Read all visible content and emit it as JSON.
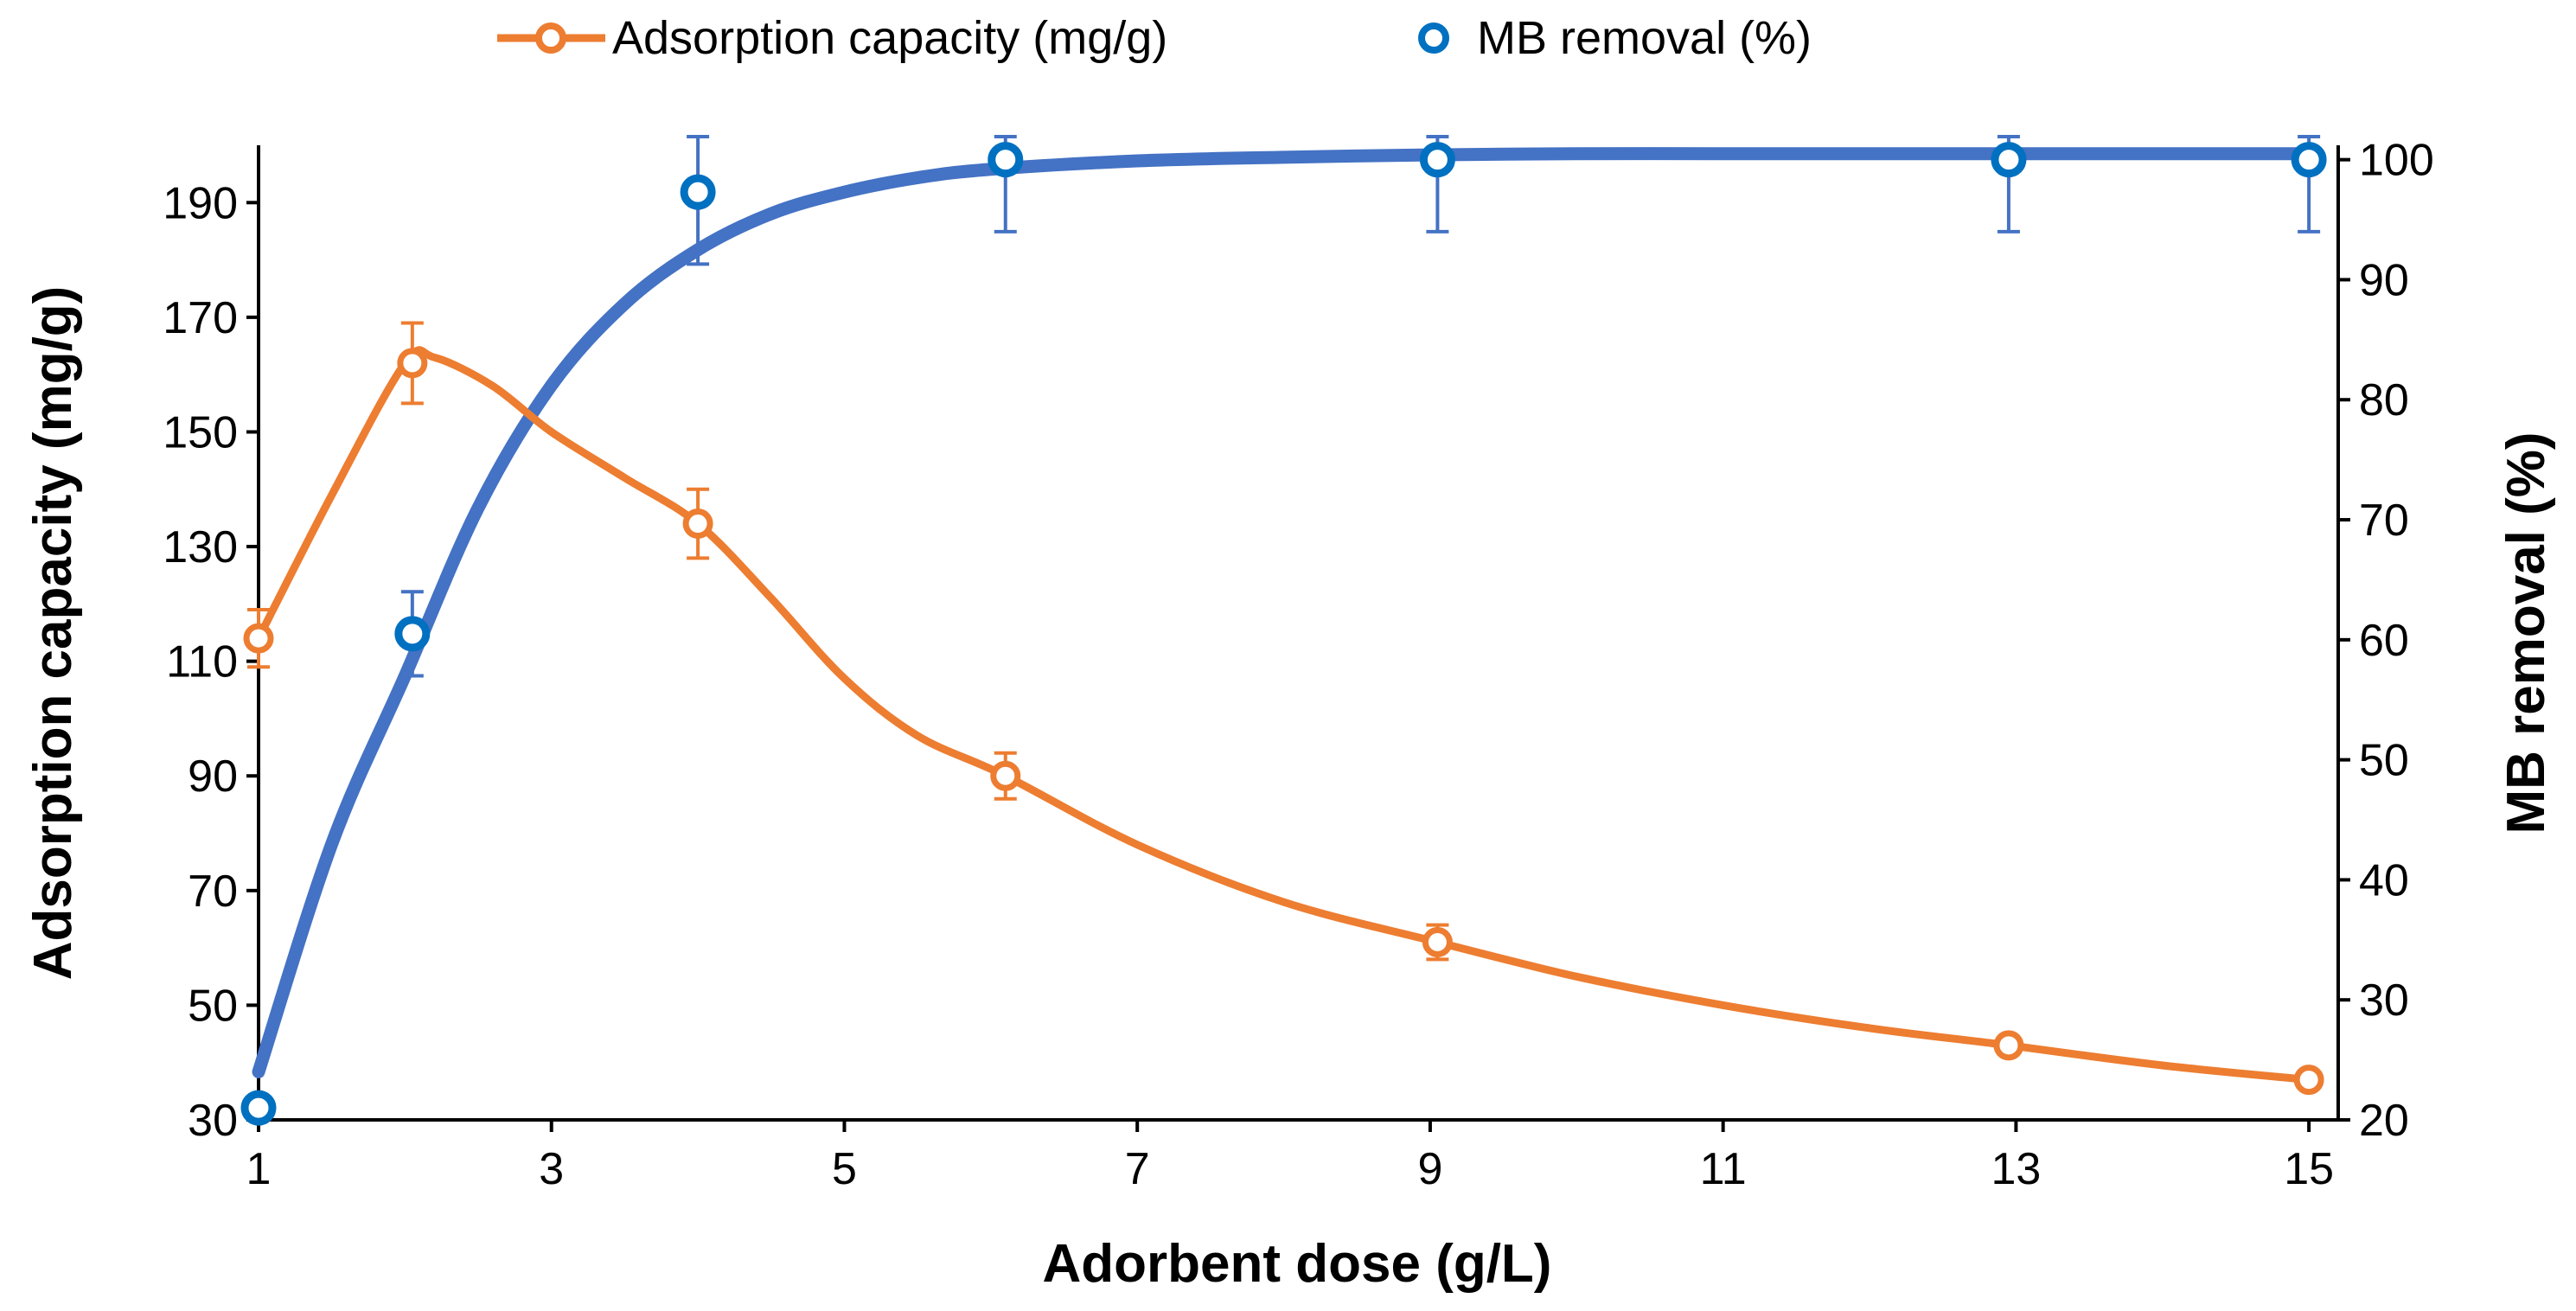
{
  "chart_data": {
    "type": "scatter",
    "xlabel": "Adorbent dose (g/L)",
    "ylabel_left": "Adsorption capacity (mg/g)",
    "ylabel_right": "MB removal (%)",
    "xlim": [
      1,
      15.2
    ],
    "ylim_left": [
      30,
      200
    ],
    "ylim_right": [
      20,
      101.2
    ],
    "xticks": [
      1,
      3,
      5,
      7,
      9,
      11,
      13,
      15
    ],
    "yticks_left": [
      30,
      50,
      70,
      90,
      110,
      130,
      150,
      170,
      190
    ],
    "yticks_right": [
      20,
      30,
      40,
      50,
      60,
      70,
      80,
      90,
      100
    ],
    "grid": false,
    "legend_position": "top-center",
    "series": [
      {
        "name": "Adsorption capacity (mg/g)",
        "axis": "left",
        "color": "#ED7D31",
        "marker": "open-circle",
        "x": [
          1,
          2.05,
          4,
          6.1,
          9.05,
          12.95,
          15
        ],
        "y": [
          114,
          162,
          134,
          90,
          61,
          43,
          37
        ],
        "error": [
          5,
          7,
          6,
          4,
          3,
          1.5,
          1
        ],
        "fit_x": [
          1,
          1.5,
          2.0,
          2.2,
          2.6,
          3.0,
          3.5,
          4.0,
          4.5,
          5.0,
          5.5,
          6.1,
          7.0,
          8.0,
          9.05,
          10.0,
          11.0,
          12.0,
          12.95,
          14.0,
          15.0
        ],
        "fit_y": [
          114,
          139,
          162,
          163,
          158,
          150,
          142,
          134,
          121,
          107,
          97,
          90,
          78,
          68,
          61,
          55,
          50,
          46,
          43,
          39.5,
          37
        ]
      },
      {
        "name": "MB removal (%)",
        "axis": "right",
        "color": "#0070C0",
        "fit_color": "#4472C4",
        "marker": "open-circle",
        "x": [
          1,
          2.05,
          4,
          6.1,
          9.05,
          12.95,
          15
        ],
        "y": [
          21,
          60.5,
          97.3,
          100,
          100,
          100,
          100
        ],
        "error": [
          0,
          3.5,
          6,
          6,
          6,
          6,
          6
        ],
        "fit_x": [
          1,
          1.5,
          2.0,
          2.5,
          3.0,
          3.5,
          4.0,
          4.5,
          5.0,
          5.5,
          6.0,
          7.0,
          8.0,
          9.0,
          10.0,
          11.0,
          12.0,
          13.0,
          14.0,
          15.0
        ],
        "fit_y": [
          24,
          43,
          57,
          71,
          81.2,
          88,
          92.5,
          95.5,
          97.3,
          98.5,
          99.2,
          99.9,
          100.2,
          100.4,
          100.5,
          100.5,
          100.5,
          100.5,
          100.5,
          100.5
        ]
      }
    ]
  }
}
